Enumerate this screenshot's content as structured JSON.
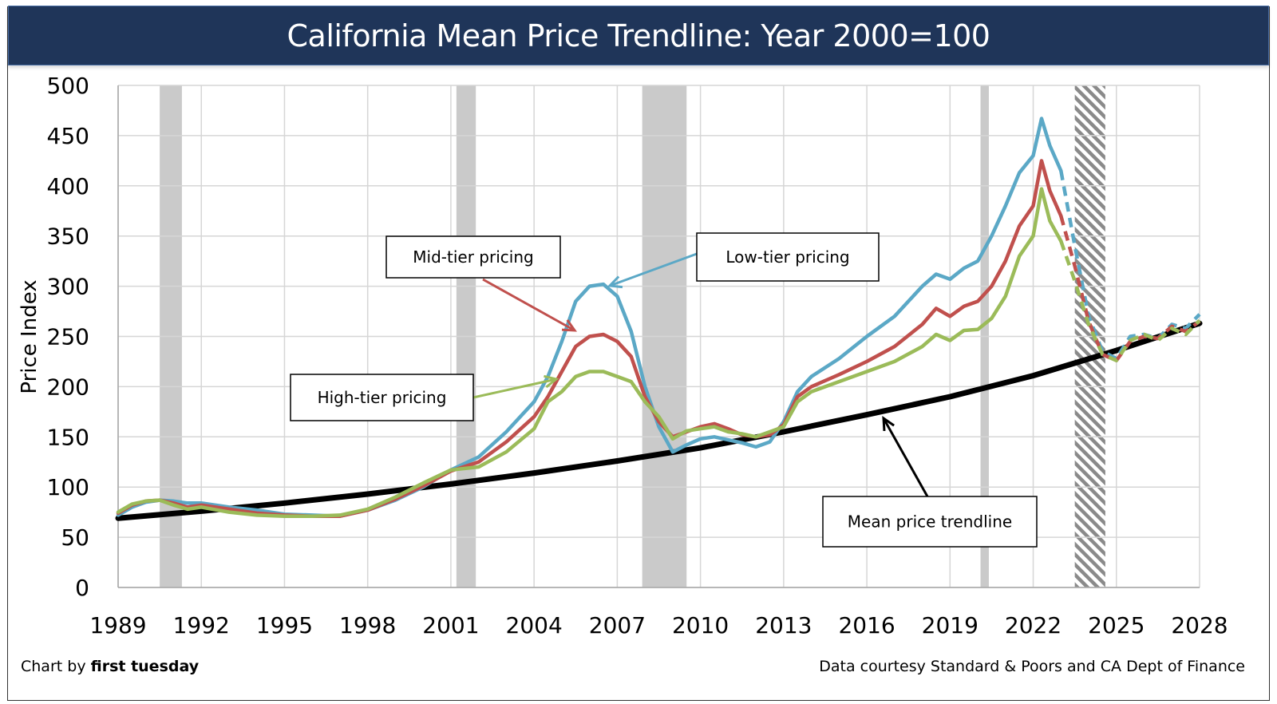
{
  "chart_data": {
    "type": "line",
    "title": "California Mean Price Trendline: Year 2000=100",
    "xlabel": "",
    "ylabel": "Price Index",
    "xlim": [
      1989,
      2028
    ],
    "ylim": [
      0,
      500
    ],
    "x_ticks": [
      1989,
      1992,
      1995,
      1998,
      2001,
      2004,
      2007,
      2010,
      2013,
      2016,
      2019,
      2022,
      2025,
      2028
    ],
    "y_ticks": [
      0,
      50,
      100,
      150,
      200,
      250,
      300,
      350,
      400,
      450,
      500
    ],
    "grid": true,
    "legend": "none (callout annotations)",
    "recession_bands": [
      {
        "start": 1990.5,
        "end": 1991.3,
        "style": "solid-gray"
      },
      {
        "start": 2001.2,
        "end": 2001.9,
        "style": "solid-gray"
      },
      {
        "start": 2007.9,
        "end": 2009.5,
        "style": "solid-gray"
      },
      {
        "start": 2020.1,
        "end": 2020.4,
        "style": "solid-gray"
      },
      {
        "start": 2023.5,
        "end": 2024.6,
        "style": "hatched"
      }
    ],
    "projection_start": 2023.0,
    "series": [
      {
        "name": "Low-tier pricing",
        "color": "#5ba8c6",
        "x": [
          1989,
          1989.5,
          1990,
          1990.5,
          1991,
          1991.5,
          1992,
          1993,
          1994,
          1995,
          1996,
          1997,
          1998,
          1999,
          2000,
          2001,
          2002,
          2003,
          2004,
          2004.5,
          2005,
          2005.5,
          2006,
          2006.5,
          2007,
          2007.5,
          2008,
          2008.5,
          2009,
          2009.5,
          2010,
          2010.5,
          2011,
          2011.5,
          2012,
          2012.5,
          2013,
          2013.5,
          2014,
          2015,
          2016,
          2017,
          2018,
          2018.5,
          2019,
          2019.5,
          2020,
          2020.5,
          2021,
          2021.5,
          2022,
          2022.3,
          2022.6,
          2023,
          2023.5,
          2024,
          2024.5,
          2025,
          2025.5,
          2026,
          2026.5,
          2027,
          2027.5,
          2028
        ],
        "values": [
          72,
          80,
          85,
          87,
          86,
          84,
          84,
          80,
          77,
          73,
          72,
          71,
          77,
          87,
          100,
          117,
          130,
          155,
          185,
          210,
          245,
          285,
          300,
          302,
          290,
          255,
          200,
          160,
          135,
          142,
          148,
          150,
          147,
          144,
          140,
          145,
          165,
          195,
          210,
          228,
          250,
          270,
          300,
          312,
          307,
          318,
          325,
          350,
          380,
          413,
          430,
          467,
          440,
          415,
          340,
          270,
          235,
          228,
          250,
          252,
          248,
          262,
          258,
          272
        ]
      },
      {
        "name": "Mid-tier pricing",
        "color": "#c0504d",
        "x": [
          1989,
          1989.5,
          1990,
          1990.5,
          1991,
          1991.5,
          1992,
          1993,
          1994,
          1995,
          1996,
          1997,
          1998,
          1999,
          2000,
          2001,
          2002,
          2003,
          2004,
          2004.5,
          2005,
          2005.5,
          2006,
          2006.5,
          2007,
          2007.5,
          2008,
          2008.5,
          2009,
          2009.5,
          2010,
          2010.5,
          2011,
          2011.5,
          2012,
          2012.5,
          2013,
          2013.5,
          2014,
          2015,
          2016,
          2017,
          2018,
          2018.5,
          2019,
          2019.5,
          2020,
          2020.5,
          2021,
          2021.5,
          2022,
          2022.3,
          2022.6,
          2023,
          2023.5,
          2024,
          2024.5,
          2025,
          2025.5,
          2026,
          2026.5,
          2027,
          2027.5,
          2028
        ],
        "values": [
          74,
          82,
          86,
          87,
          84,
          80,
          82,
          78,
          74,
          72,
          71,
          71,
          77,
          88,
          101,
          116,
          125,
          145,
          170,
          190,
          215,
          240,
          250,
          252,
          245,
          230,
          190,
          165,
          150,
          155,
          160,
          163,
          158,
          152,
          150,
          152,
          162,
          190,
          200,
          212,
          225,
          240,
          262,
          278,
          270,
          280,
          285,
          300,
          325,
          360,
          380,
          425,
          395,
          370,
          320,
          265,
          232,
          226,
          245,
          250,
          248,
          260,
          255,
          265
        ]
      },
      {
        "name": "High-tier pricing",
        "color": "#9bbb59",
        "x": [
          1989,
          1989.5,
          1990,
          1990.5,
          1991,
          1991.5,
          1992,
          1993,
          1994,
          1995,
          1996,
          1997,
          1998,
          1999,
          2000,
          2001,
          2002,
          2003,
          2004,
          2004.5,
          2005,
          2005.5,
          2006,
          2006.5,
          2007,
          2007.5,
          2008,
          2008.5,
          2009,
          2009.5,
          2010,
          2010.5,
          2011,
          2011.5,
          2012,
          2012.5,
          2013,
          2013.5,
          2014,
          2015,
          2016,
          2017,
          2018,
          2018.5,
          2019,
          2019.5,
          2020,
          2020.5,
          2021,
          2021.5,
          2022,
          2022.3,
          2022.6,
          2023,
          2023.5,
          2024,
          2024.5,
          2025,
          2025.5,
          2026,
          2026.5,
          2027,
          2027.5,
          2028
        ],
        "values": [
          75,
          83,
          86,
          87,
          82,
          78,
          80,
          75,
          72,
          71,
          71,
          72,
          78,
          90,
          104,
          117,
          120,
          135,
          158,
          185,
          195,
          210,
          215,
          215,
          210,
          205,
          185,
          170,
          148,
          156,
          158,
          160,
          155,
          153,
          150,
          155,
          160,
          185,
          195,
          205,
          215,
          225,
          240,
          252,
          246,
          256,
          257,
          268,
          290,
          330,
          350,
          397,
          365,
          345,
          305,
          262,
          232,
          226,
          246,
          252,
          246,
          258,
          252,
          266
        ]
      },
      {
        "name": "Mean price trendline",
        "color": "#000000",
        "x": [
          1989,
          1992,
          1995,
          1998,
          2001,
          2004,
          2007,
          2010,
          2013,
          2016,
          2019,
          2022,
          2025,
          2028
        ],
        "values": [
          69,
          76,
          84,
          93,
          103,
          114,
          126,
          139,
          155,
          172,
          190,
          211,
          236,
          263
        ]
      }
    ],
    "annotations": [
      {
        "text": "Mid-tier pricing",
        "points_to": "Mid-tier pricing",
        "target_x": 2006.0,
        "target_y": 250
      },
      {
        "text": "Low-tier pricing",
        "points_to": "Low-tier pricing",
        "target_x": 2007.2,
        "target_y": 300
      },
      {
        "text": "High-tier pricing",
        "points_to": "High-tier pricing",
        "target_x": 2005.2,
        "target_y": 208
      },
      {
        "text": "Mean price trendline",
        "points_to": "Mean price trendline",
        "target_x": 2017.4,
        "target_y": 170
      }
    ]
  },
  "footer": {
    "left_prefix": "Chart by ",
    "left_brand": "first tuesday",
    "right": "Data courtesy Standard & Poors and CA Dept of Finance"
  }
}
